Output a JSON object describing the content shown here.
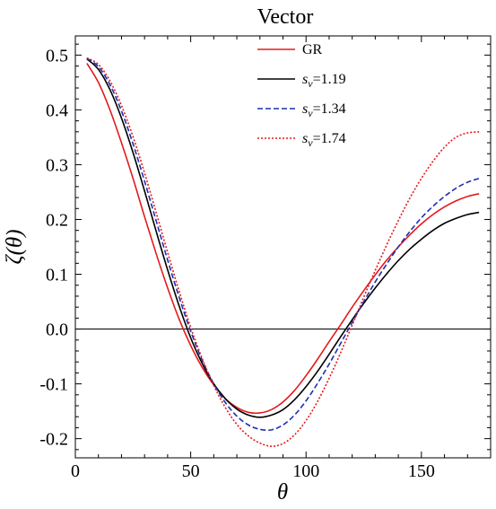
{
  "chart_data": {
    "type": "line",
    "title": "Vector",
    "xlabel": "θ",
    "ylabel": "ζ(θ)",
    "xlim": [
      0,
      180
    ],
    "ylim": [
      -0.235,
      0.535
    ],
    "xticks": [
      0,
      50,
      100,
      150
    ],
    "xtick_labels": [
      "0",
      "50",
      "100",
      "150"
    ],
    "yticks": [
      -0.2,
      -0.1,
      0.0,
      0.1,
      0.2,
      0.3,
      0.4,
      0.5
    ],
    "ytick_labels": [
      "-0.2",
      "-0.1",
      "0.0",
      "0.1",
      "0.2",
      "0.3",
      "0.4",
      "0.5"
    ],
    "grid": false,
    "zero_line": true,
    "legend_position": "top-right",
    "series": [
      {
        "name": "GR",
        "legend_symbol": "",
        "legend_value": "GR",
        "color": "#e31a1c",
        "dash": "solid",
        "x": [
          5,
          10,
          15,
          20,
          25,
          30,
          35,
          40,
          45,
          50,
          55,
          60,
          65,
          70,
          75,
          80,
          85,
          90,
          95,
          100,
          105,
          110,
          115,
          120,
          125,
          130,
          135,
          140,
          145,
          150,
          155,
          160,
          165,
          170,
          175
        ],
        "y": [
          0.485,
          0.45,
          0.4,
          0.34,
          0.275,
          0.205,
          0.138,
          0.075,
          0.018,
          -0.03,
          -0.07,
          -0.102,
          -0.127,
          -0.143,
          -0.152,
          -0.153,
          -0.147,
          -0.133,
          -0.112,
          -0.085,
          -0.055,
          -0.023,
          0.008,
          0.04,
          0.07,
          0.099,
          0.126,
          0.15,
          0.172,
          0.192,
          0.209,
          0.223,
          0.234,
          0.242,
          0.247
        ]
      },
      {
        "name": "s_v=1.19",
        "legend_symbol": "s",
        "legend_subscript": "ν",
        "legend_value": "=1.19",
        "color": "#000000",
        "dash": "solid",
        "x": [
          5,
          10,
          15,
          20,
          25,
          30,
          35,
          40,
          45,
          50,
          55,
          60,
          65,
          70,
          75,
          80,
          85,
          90,
          95,
          100,
          105,
          110,
          115,
          120,
          125,
          130,
          135,
          140,
          145,
          150,
          155,
          160,
          165,
          170,
          175
        ],
        "y": [
          0.493,
          0.474,
          0.437,
          0.385,
          0.322,
          0.252,
          0.179,
          0.108,
          0.042,
          -0.016,
          -0.063,
          -0.1,
          -0.127,
          -0.146,
          -0.157,
          -0.161,
          -0.157,
          -0.147,
          -0.129,
          -0.105,
          -0.077,
          -0.046,
          -0.014,
          0.017,
          0.047,
          0.075,
          0.101,
          0.125,
          0.146,
          0.164,
          0.18,
          0.193,
          0.202,
          0.209,
          0.213
        ]
      },
      {
        "name": "s_v=1.34",
        "legend_symbol": "s",
        "legend_subscript": "ν",
        "legend_value": "=1.34",
        "color": "#1f2fb0",
        "dash": "dashed",
        "x": [
          5,
          10,
          15,
          20,
          25,
          30,
          35,
          40,
          45,
          50,
          55,
          60,
          65,
          70,
          75,
          80,
          85,
          90,
          95,
          100,
          105,
          110,
          115,
          120,
          125,
          130,
          135,
          140,
          145,
          150,
          155,
          160,
          165,
          170,
          175
        ],
        "y": [
          0.494,
          0.479,
          0.446,
          0.398,
          0.338,
          0.27,
          0.198,
          0.126,
          0.058,
          -0.004,
          -0.057,
          -0.1,
          -0.134,
          -0.159,
          -0.175,
          -0.183,
          -0.184,
          -0.175,
          -0.157,
          -0.131,
          -0.099,
          -0.064,
          -0.026,
          0.012,
          0.05,
          0.086,
          0.119,
          0.15,
          0.178,
          0.203,
          0.224,
          0.242,
          0.257,
          0.268,
          0.275
        ]
      },
      {
        "name": "s_v=1.74",
        "legend_symbol": "s",
        "legend_subscript": "ν",
        "legend_value": "=1.74",
        "color": "#e31a1c",
        "dash": "dotted",
        "x": [
          5,
          10,
          15,
          20,
          25,
          30,
          35,
          40,
          45,
          50,
          55,
          60,
          65,
          70,
          75,
          80,
          85,
          90,
          95,
          100,
          105,
          110,
          115,
          120,
          125,
          130,
          135,
          140,
          145,
          150,
          155,
          160,
          165,
          170,
          175
        ],
        "y": [
          0.495,
          0.483,
          0.453,
          0.408,
          0.351,
          0.285,
          0.213,
          0.14,
          0.069,
          0.003,
          -0.054,
          -0.103,
          -0.143,
          -0.174,
          -0.195,
          -0.208,
          -0.214,
          -0.209,
          -0.193,
          -0.167,
          -0.132,
          -0.09,
          -0.043,
          0.007,
          0.058,
          0.107,
          0.154,
          0.198,
          0.239,
          0.275,
          0.306,
          0.332,
          0.35,
          0.358,
          0.36
        ]
      }
    ]
  }
}
